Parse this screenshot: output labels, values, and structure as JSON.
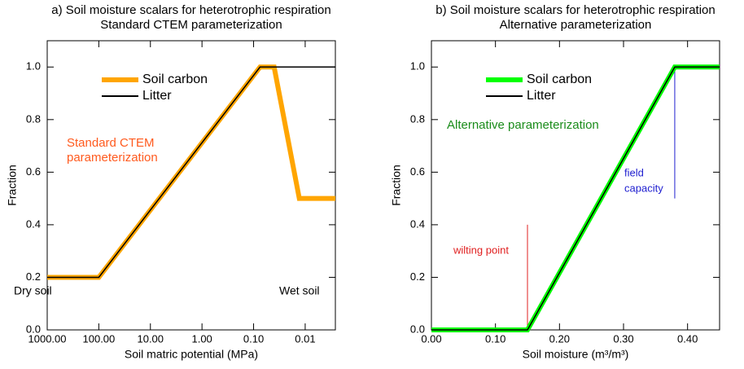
{
  "chart_data": [
    {
      "type": "line",
      "title": "a) Soil moisture scalars for heterotrophic respiration",
      "subtitle": "Standard CTEM parameterization",
      "x_label": "Soil matric potential (MPa)",
      "y_label": "Fraction",
      "xscale": "log",
      "xlim": [
        1000,
        0.0026
      ],
      "ylim": [
        0,
        1.1
      ],
      "xticks": [
        {
          "value": 1000,
          "label": "1000.00"
        },
        {
          "value": 100,
          "label": "100.00"
        },
        {
          "value": 10,
          "label": "10.00"
        },
        {
          "value": 1,
          "label": "1.00"
        },
        {
          "value": 0.1,
          "label": "0.10"
        },
        {
          "value": 0.01,
          "label": "0.01"
        }
      ],
      "yticks": [
        {
          "value": 0,
          "label": "0.0"
        },
        0.2,
        0.4,
        0.6,
        0.8,
        {
          "value": 1,
          "label": "1.0"
        }
      ],
      "legend": "upper left",
      "series": [
        {
          "name": "Soil carbon",
          "color": "#ffa500",
          "x": [
            1000,
            100,
            0.075,
            0.04,
            0.013,
            0.0026
          ],
          "values": [
            0.2,
            0.2,
            1.0,
            1.0,
            0.5,
            0.5
          ]
        },
        {
          "name": "Litter",
          "color": "#000000",
          "x": [
            1000,
            100,
            0.075,
            0.0026
          ],
          "values": [
            0.2,
            0.2,
            1.0,
            1.0
          ]
        }
      ],
      "annotations": [
        {
          "text": "Standard CTEM",
          "color": "#ff5a1e"
        },
        {
          "text": "parameterization",
          "color": "#ff5a1e"
        },
        {
          "text": "Dry soil",
          "color": "#000000"
        },
        {
          "text": "Wet soil",
          "color": "#000000"
        }
      ]
    },
    {
      "type": "line",
      "title": "b) Soil moisture scalars for heterotrophic respiration",
      "subtitle": "Alternative parameterization",
      "x_label": "Soil moisture (m³/m³)",
      "y_label": "Fraction",
      "xscale": "linear",
      "xlim": [
        0,
        0.45
      ],
      "ylim": [
        0,
        1.1
      ],
      "xticks": [
        {
          "value": 0,
          "label": "0.00"
        },
        {
          "value": 0.1,
          "label": "0.10"
        },
        {
          "value": 0.2,
          "label": "0.20"
        },
        {
          "value": 0.3,
          "label": "0.30"
        },
        {
          "value": 0.4,
          "label": "0.40"
        }
      ],
      "yticks": [
        {
          "value": 0,
          "label": "0.0"
        },
        0.2,
        0.4,
        0.6,
        0.8,
        {
          "value": 1,
          "label": "1.0"
        }
      ],
      "legend": "upper left",
      "series": [
        {
          "name": "Soil carbon",
          "color": "#00ff00",
          "x": [
            0,
            0.15,
            0.38,
            0.45
          ],
          "values": [
            0,
            0,
            1.0,
            1.0
          ]
        },
        {
          "name": "Litter",
          "color": "#000000",
          "x": [
            0,
            0.15,
            0.38,
            0.45
          ],
          "values": [
            0,
            0,
            1.0,
            1.0
          ]
        }
      ],
      "annotations": [
        {
          "text": "Alternative parameterization",
          "color": "#1a8c1a"
        }
      ],
      "reference_lines": [
        {
          "labels": [
            "wilting point"
          ],
          "x": 0.15,
          "y": [
            0,
            0.4
          ],
          "color": "#e02020"
        },
        {
          "labels": [
            "field",
            "capacity"
          ],
          "x": 0.38,
          "y": [
            0.5,
            1.0
          ],
          "color": "#2020d0"
        }
      ]
    }
  ]
}
